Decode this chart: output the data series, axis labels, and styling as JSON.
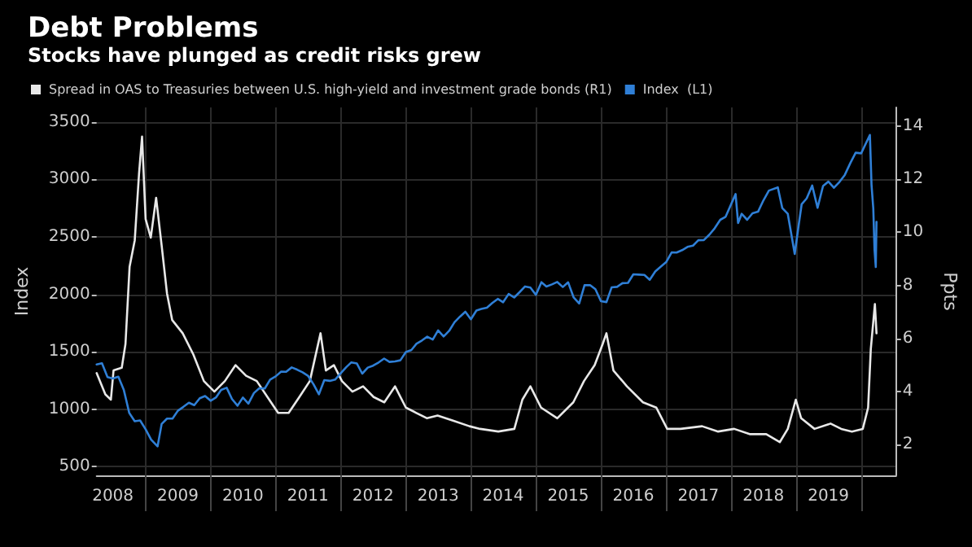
{
  "chart_data": {
    "type": "line",
    "title": "Debt Problems",
    "subtitle": "Stocks have plunged as credit risks grew",
    "ylabel": "Index",
    "y2label": "Ppts",
    "legend": "top left",
    "grid": true,
    "marker": "none",
    "line_style": "solid",
    "xlim": [
      "2008-04-01",
      "2020-07-15"
    ],
    "xticks": [
      {
        "value": "2008-07-01",
        "label": "2008"
      },
      {
        "value": "2009-01-01",
        "label": null
      },
      {
        "value": "2009-07-01",
        "label": "2009"
      },
      {
        "value": "2010-01-01",
        "label": null
      },
      {
        "value": "2010-07-01",
        "label": "2010"
      },
      {
        "value": "2011-01-01",
        "label": null
      },
      {
        "value": "2011-07-01",
        "label": "2011"
      },
      {
        "value": "2012-01-01",
        "label": null
      },
      {
        "value": "2012-07-01",
        "label": "2012"
      },
      {
        "value": "2013-01-01",
        "label": null
      },
      {
        "value": "2013-07-01",
        "label": "2013"
      },
      {
        "value": "2014-01-01",
        "label": null
      },
      {
        "value": "2014-07-01",
        "label": "2014"
      },
      {
        "value": "2015-01-01",
        "label": null
      },
      {
        "value": "2015-07-01",
        "label": "2015"
      },
      {
        "value": "2016-01-01",
        "label": null
      },
      {
        "value": "2016-07-01",
        "label": "2016"
      },
      {
        "value": "2017-01-01",
        "label": null
      },
      {
        "value": "2017-07-01",
        "label": "2017"
      },
      {
        "value": "2018-01-01",
        "label": null
      },
      {
        "value": "2018-07-01",
        "label": "2018"
      },
      {
        "value": "2019-01-01",
        "label": null
      },
      {
        "value": "2019-07-01",
        "label": "2019"
      },
      {
        "value": "2020-01-01",
        "label": null
      }
    ],
    "ylim": [
      425,
      3625
    ],
    "yticks": [
      500,
      1000,
      1500,
      2000,
      2500,
      3000,
      3500
    ],
    "y2lim": [
      0.85,
      14.7
    ],
    "y2ticks": [
      2,
      4,
      6,
      8,
      10,
      12,
      14
    ],
    "series": [
      {
        "name": "Spread in OAS to Treasuries between U.S. high-yield and investment grade bonds (R1)",
        "color": "#e8e8e8",
        "axis": "y2",
        "x": [
          "2008-04-01",
          "2008-05-20",
          "2008-06-20",
          "2008-07-05",
          "2008-08-20",
          "2008-09-10",
          "2008-10-03",
          "2008-11-01",
          "2008-11-25",
          "2008-12-12",
          "2009-01-01",
          "2009-01-30",
          "2009-03-01",
          "2009-04-01",
          "2009-05-01",
          "2009-05-30",
          "2009-07-28",
          "2009-09-26",
          "2009-11-24",
          "2010-01-22",
          "2010-03-22",
          "2010-05-21",
          "2010-07-19",
          "2010-09-17",
          "2010-11-16",
          "2011-01-15",
          "2011-03-15",
          "2011-05-14",
          "2011-07-12",
          "2011-09-10",
          "2011-10-10",
          "2011-11-24",
          "2012-01-08",
          "2012-03-07",
          "2012-05-06",
          "2012-07-04",
          "2012-09-02",
          "2012-11-01",
          "2013-01-01",
          "2013-03-01",
          "2013-04-30",
          "2013-06-28",
          "2013-09-26",
          "2013-12-24",
          "2014-02-22",
          "2014-06-04",
          "2014-09-02",
          "2014-10-17",
          "2014-12-01",
          "2015-01-30",
          "2015-05-01",
          "2015-07-30",
          "2015-09-28",
          "2015-11-27",
          "2016-01-11",
          "2016-02-01",
          "2016-03-11",
          "2016-05-26",
          "2016-08-24",
          "2016-11-07",
          "2017-01-07",
          "2017-03-23",
          "2017-07-22",
          "2017-10-20",
          "2018-01-18",
          "2018-04-18",
          "2018-07-17",
          "2018-10-01",
          "2018-11-15",
          "2018-12-30",
          "2019-01-29",
          "2019-04-14",
          "2019-07-13",
          "2019-09-11",
          "2019-11-10",
          "2020-01-10",
          "2020-02-09",
          "2020-02-24",
          "2020-03-18",
          "2020-03-27"
        ],
        "values": [
          4.7,
          3.9,
          3.7,
          4.8,
          4.9,
          5.8,
          8.7,
          9.7,
          12.2,
          13.6,
          10.5,
          9.8,
          11.3,
          9.5,
          7.7,
          6.7,
          6.2,
          5.4,
          4.4,
          4.0,
          4.4,
          5.0,
          4.6,
          4.4,
          3.8,
          3.2,
          3.2,
          3.8,
          4.4,
          6.2,
          4.8,
          5.0,
          4.4,
          4.0,
          4.2,
          3.8,
          3.6,
          4.2,
          3.4,
          3.2,
          3.0,
          3.1,
          2.9,
          2.7,
          2.6,
          2.5,
          2.6,
          3.7,
          4.2,
          3.4,
          3.0,
          3.6,
          4.4,
          5.0,
          5.8,
          6.2,
          4.8,
          4.2,
          3.6,
          3.4,
          2.6,
          2.6,
          2.7,
          2.5,
          2.6,
          2.4,
          2.4,
          2.1,
          2.6,
          3.7,
          3.0,
          2.6,
          2.8,
          2.6,
          2.5,
          2.6,
          3.4,
          5.6,
          7.3,
          6.2
        ]
      },
      {
        "name": "Index  (L1)",
        "color": "#2f7fd6",
        "x": [
          "2008-04-01",
          "2008-05-01",
          "2008-06-01",
          "2008-07-01",
          "2008-08-01",
          "2008-09-01",
          "2008-10-01",
          "2008-11-01",
          "2008-12-01",
          "2009-01-01",
          "2009-02-01",
          "2009-03-09",
          "2009-04-01",
          "2009-05-01",
          "2009-06-01",
          "2009-07-01",
          "2009-08-01",
          "2009-09-01",
          "2009-10-01",
          "2009-11-01",
          "2009-12-01",
          "2010-01-01",
          "2010-02-01",
          "2010-03-01",
          "2010-04-01",
          "2010-05-01",
          "2010-06-01",
          "2010-07-01",
          "2010-08-01",
          "2010-09-01",
          "2010-10-01",
          "2010-11-01",
          "2010-12-01",
          "2011-01-01",
          "2011-02-01",
          "2011-03-01",
          "2011-04-01",
          "2011-05-01",
          "2011-06-01",
          "2011-07-01",
          "2011-08-01",
          "2011-09-01",
          "2011-10-01",
          "2011-11-01",
          "2011-12-01",
          "2012-01-01",
          "2012-02-01",
          "2012-03-01",
          "2012-04-01",
          "2012-05-01",
          "2012-06-01",
          "2012-07-01",
          "2012-08-01",
          "2012-09-01",
          "2012-10-01",
          "2012-11-01",
          "2012-12-01",
          "2013-01-01",
          "2013-02-01",
          "2013-03-01",
          "2013-04-01",
          "2013-05-01",
          "2013-06-01",
          "2013-07-01",
          "2013-08-01",
          "2013-09-01",
          "2013-10-01",
          "2013-11-01",
          "2013-12-01",
          "2014-01-01",
          "2014-02-01",
          "2014-03-01",
          "2014-04-01",
          "2014-05-01",
          "2014-06-01",
          "2014-07-01",
          "2014-08-01",
          "2014-09-01",
          "2014-10-01",
          "2014-11-01",
          "2014-12-01",
          "2015-01-01",
          "2015-02-01",
          "2015-03-01",
          "2015-04-01",
          "2015-05-01",
          "2015-06-01",
          "2015-07-01",
          "2015-08-01",
          "2015-09-01",
          "2015-10-01",
          "2015-11-01",
          "2015-12-01",
          "2016-01-01",
          "2016-02-01",
          "2016-03-01",
          "2016-04-01",
          "2016-05-01",
          "2016-06-01",
          "2016-07-01",
          "2016-08-01",
          "2016-09-01",
          "2016-10-01",
          "2016-11-01",
          "2016-12-01",
          "2017-01-01",
          "2017-02-01",
          "2017-03-01",
          "2017-04-01",
          "2017-05-01",
          "2017-06-01",
          "2017-07-01",
          "2017-08-01",
          "2017-09-01",
          "2017-10-01",
          "2017-11-01",
          "2017-12-01",
          "2018-01-26",
          "2018-02-09",
          "2018-03-01",
          "2018-04-01",
          "2018-05-01",
          "2018-06-01",
          "2018-07-01",
          "2018-08-01",
          "2018-09-20",
          "2018-10-15",
          "2018-11-15",
          "2018-12-24",
          "2019-01-15",
          "2019-02-01",
          "2019-03-01",
          "2019-04-01",
          "2019-05-01",
          "2019-06-01",
          "2019-07-01",
          "2019-08-01",
          "2019-09-01",
          "2019-10-01",
          "2019-11-01",
          "2019-12-01",
          "2020-01-01",
          "2020-02-19",
          "2020-02-28",
          "2020-03-09",
          "2020-03-16",
          "2020-03-23",
          "2020-03-27"
        ],
        "values": [
          1390,
          1400,
          1280,
          1267,
          1283,
          1166,
          968,
          896,
          903,
          826,
          735,
          677,
          872,
          919,
          919,
          987,
          1021,
          1057,
          1036,
          1096,
          1115,
          1074,
          1104,
          1169,
          1187,
          1089,
          1031,
          1102,
          1049,
          1141,
          1183,
          1181,
          1258,
          1286,
          1327,
          1326,
          1364,
          1345,
          1321,
          1292,
          1219,
          1131,
          1253,
          1247,
          1258,
          1312,
          1366,
          1408,
          1398,
          1310,
          1362,
          1379,
          1407,
          1441,
          1412,
          1416,
          1426,
          1498,
          1515,
          1569,
          1598,
          1631,
          1606,
          1686,
          1633,
          1682,
          1757,
          1806,
          1848,
          1783,
          1859,
          1872,
          1884,
          1924,
          1960,
          1931,
          2003,
          1972,
          2018,
          2068,
          2059,
          1995,
          2105,
          2068,
          2086,
          2107,
          2063,
          2104,
          1972,
          1920,
          2079,
          2080,
          2044,
          1940,
          1932,
          2060,
          2065,
          2097,
          2099,
          2174,
          2171,
          2168,
          2126,
          2199,
          2239,
          2279,
          2364,
          2363,
          2384,
          2412,
          2423,
          2470,
          2472,
          2519,
          2575,
          2648,
          2674,
          2872,
          2620,
          2700,
          2648,
          2705,
          2718,
          2816,
          2902,
          2930,
          2750,
          2700,
          2351,
          2600,
          2784,
          2834,
          2946,
          2752,
          2942,
          2980,
          2926,
          2977,
          3038,
          3141,
          3231,
          3226,
          3386,
          2954,
          2747,
          2386,
          2237,
          2630
        ]
      }
    ]
  }
}
